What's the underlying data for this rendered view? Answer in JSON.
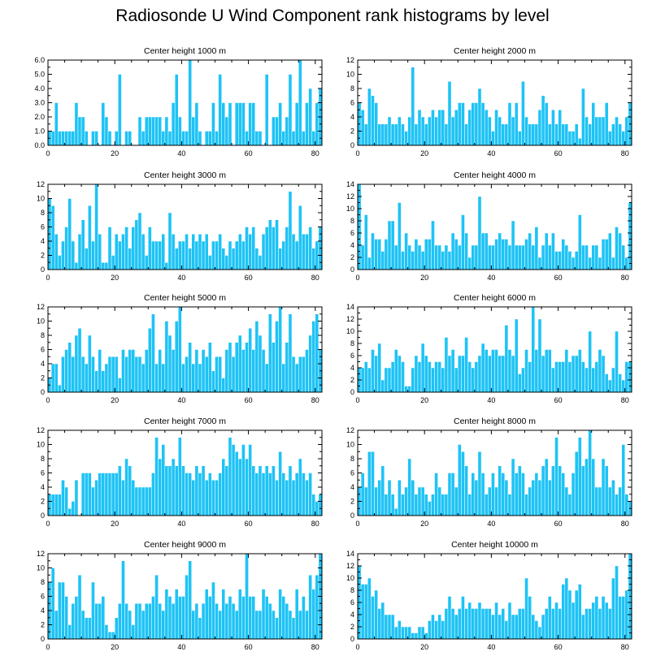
{
  "figure": {
    "title": "Radiosonde U Wind Component rank histograms by level",
    "bar_color": "#1ec3f5",
    "bar_edge_color": "#ffffff",
    "axis_color": "#000000"
  },
  "chart_data": [
    {
      "type": "bar",
      "title": "Center height 1000 m",
      "xlim": [
        0,
        82
      ],
      "xticks": [
        0,
        20,
        40,
        60,
        80
      ],
      "ylim": [
        0,
        6
      ],
      "yticks": [
        0,
        1,
        2,
        3,
        4,
        5,
        6
      ],
      "ytick_labels": [
        "0.0",
        "1.0",
        "2.0",
        "3.0",
        "4.0",
        "5.0",
        "6.0"
      ],
      "x_start": 0,
      "values": [
        1,
        1,
        3,
        1,
        1,
        1,
        1,
        1,
        3,
        2,
        2,
        1,
        0,
        1,
        1,
        0,
        3,
        2,
        1,
        0,
        1,
        5,
        0,
        1,
        1,
        0,
        0,
        2,
        1,
        2,
        2,
        2,
        2,
        2,
        1,
        2,
        1,
        3,
        5,
        2,
        1,
        1,
        6,
        2,
        3,
        1,
        0,
        1,
        1,
        3,
        1,
        5,
        3,
        2,
        3,
        0,
        3,
        3,
        3,
        1,
        3,
        3,
        1,
        1,
        0,
        5,
        0,
        2,
        2,
        3,
        1,
        2,
        5,
        1,
        3,
        6,
        1,
        3,
        4,
        1,
        3,
        4
      ]
    },
    {
      "type": "bar",
      "title": "Center height 2000 m",
      "xlim": [
        0,
        82
      ],
      "xticks": [
        0,
        20,
        40,
        60,
        80
      ],
      "ylim": [
        0,
        12
      ],
      "yticks": [
        0,
        2,
        4,
        6,
        8,
        10,
        12
      ],
      "ytick_labels": [
        "0",
        "2",
        "4",
        "6",
        "8",
        "10",
        "12"
      ],
      "x_start": 0,
      "values": [
        6,
        5,
        3,
        8,
        7,
        6,
        3,
        3,
        3,
        4,
        3,
        3,
        4,
        3,
        2,
        4,
        11,
        3,
        5,
        4,
        3,
        4,
        5,
        4,
        5,
        5,
        3,
        9,
        4,
        5,
        6,
        6,
        3,
        5,
        6,
        6,
        8,
        6,
        5,
        4,
        2,
        5,
        4,
        3,
        3,
        6,
        4,
        6,
        2,
        9,
        4,
        3,
        3,
        3,
        5,
        7,
        6,
        3,
        5,
        3,
        5,
        3,
        3,
        2,
        2,
        3,
        1,
        8,
        4,
        3,
        6,
        4,
        4,
        4,
        6,
        2,
        3,
        4,
        3,
        2,
        4,
        6
      ]
    },
    {
      "type": "bar",
      "title": "Center height 3000 m",
      "xlim": [
        0,
        82
      ],
      "xticks": [
        0,
        20,
        40,
        60,
        80
      ],
      "ylim": [
        0,
        12
      ],
      "yticks": [
        0,
        2,
        4,
        6,
        8,
        10,
        12
      ],
      "ytick_labels": [
        "0",
        "2",
        "4",
        "6",
        "8",
        "10",
        "12"
      ],
      "x_start": 0,
      "values": [
        10,
        9,
        5,
        2,
        4,
        6,
        10,
        4,
        1,
        5,
        7,
        3,
        9,
        4,
        12,
        5,
        1,
        1,
        6,
        2,
        5,
        4,
        5,
        6,
        3,
        6,
        7,
        8,
        5,
        2,
        6,
        4,
        4,
        4,
        5,
        1,
        8,
        5,
        3,
        4,
        4,
        5,
        3,
        5,
        4,
        5,
        4,
        5,
        2,
        4,
        4,
        5,
        3,
        2,
        4,
        3,
        4,
        5,
        4,
        6,
        5,
        6,
        3,
        2,
        5,
        6,
        7,
        6,
        7,
        3,
        4,
        6,
        11,
        5,
        4,
        9,
        5,
        5,
        6,
        3,
        4,
        6
      ]
    },
    {
      "type": "bar",
      "title": "Center height 4000 m",
      "xlim": [
        0,
        82
      ],
      "xticks": [
        0,
        20,
        40,
        60,
        80
      ],
      "ylim": [
        0,
        14
      ],
      "yticks": [
        0,
        2,
        4,
        6,
        8,
        10,
        12,
        14
      ],
      "ytick_labels": [
        "0",
        "2",
        "4",
        "6",
        "8",
        "10",
        "12",
        "14"
      ],
      "x_start": 0,
      "values": [
        14,
        4,
        9,
        2,
        6,
        5,
        5,
        3,
        5,
        8,
        8,
        4,
        11,
        3,
        6,
        4,
        3,
        5,
        4,
        3,
        5,
        5,
        8,
        4,
        4,
        3,
        4,
        3,
        6,
        5,
        4,
        9,
        6,
        2,
        4,
        4,
        12,
        6,
        6,
        4,
        4,
        5,
        6,
        5,
        5,
        4,
        8,
        4,
        4,
        4,
        5,
        6,
        4,
        7,
        2,
        4,
        6,
        4,
        6,
        3,
        3,
        5,
        4,
        3,
        2,
        3,
        9,
        4,
        4,
        2,
        4,
        4,
        2,
        5,
        5,
        6,
        2,
        7,
        6,
        4,
        2,
        11
      ]
    },
    {
      "type": "bar",
      "title": "Center height 5000 m",
      "xlim": [
        0,
        82
      ],
      "xticks": [
        0,
        20,
        40,
        60,
        80
      ],
      "ylim": [
        0,
        12
      ],
      "yticks": [
        0,
        2,
        4,
        6,
        8,
        10,
        12
      ],
      "ytick_labels": [
        "0",
        "2",
        "4",
        "6",
        "8",
        "10",
        "12"
      ],
      "x_start": 0,
      "values": [
        2,
        4,
        4,
        1,
        5,
        6,
        7,
        5,
        8,
        9,
        5,
        4,
        8,
        5,
        3,
        6,
        3,
        4,
        5,
        5,
        5,
        2,
        6,
        5,
        6,
        6,
        5,
        5,
        4,
        6,
        9,
        11,
        4,
        6,
        4,
        10,
        8,
        6,
        10,
        12,
        4,
        5,
        7,
        4,
        6,
        4,
        6,
        5,
        7,
        3,
        5,
        5,
        2,
        6,
        7,
        5,
        7,
        8,
        6,
        7,
        9,
        6,
        10,
        8,
        6,
        4,
        11,
        7,
        10,
        12,
        4,
        7,
        11,
        5,
        4,
        5,
        5,
        6,
        8,
        10,
        11,
        6
      ]
    },
    {
      "type": "bar",
      "title": "Center height 6000 m",
      "xlim": [
        0,
        82
      ],
      "xticks": [
        0,
        20,
        40,
        60,
        80
      ],
      "ylim": [
        0,
        14
      ],
      "yticks": [
        0,
        2,
        4,
        6,
        8,
        10,
        12,
        14
      ],
      "ytick_labels": [
        "0",
        "2",
        "4",
        "6",
        "8",
        "10",
        "12",
        "14"
      ],
      "x_start": 0,
      "values": [
        4,
        4,
        5,
        4,
        7,
        6,
        8,
        2,
        4,
        4,
        5,
        7,
        6,
        5,
        1,
        1,
        4,
        6,
        5,
        8,
        6,
        5,
        4,
        5,
        5,
        4,
        9,
        6,
        7,
        4,
        6,
        6,
        9,
        5,
        4,
        5,
        6,
        8,
        7,
        6,
        7,
        7,
        6,
        6,
        11,
        7,
        6,
        12,
        3,
        4,
        7,
        5,
        14,
        7,
        12,
        6,
        7,
        7,
        4,
        5,
        5,
        5,
        7,
        5,
        6,
        6,
        7,
        5,
        4,
        10,
        4,
        5,
        7,
        6,
        3,
        2,
        4,
        10,
        3,
        2,
        5,
        5
      ]
    },
    {
      "type": "bar",
      "title": "Center height 7000 m",
      "xlim": [
        0,
        82
      ],
      "xticks": [
        0,
        20,
        40,
        60,
        80
      ],
      "ylim": [
        0,
        12
      ],
      "yticks": [
        0,
        2,
        4,
        6,
        8,
        10,
        12
      ],
      "ytick_labels": [
        "0",
        "2",
        "4",
        "6",
        "8",
        "10",
        "12"
      ],
      "x_start": 0,
      "values": [
        3,
        3,
        3,
        3,
        5,
        4,
        1,
        2,
        5,
        0,
        6,
        6,
        6,
        4,
        5,
        6,
        6,
        6,
        6,
        6,
        6,
        7,
        5,
        8,
        7,
        5,
        4,
        4,
        4,
        4,
        4,
        6,
        11,
        8,
        10,
        7,
        7,
        8,
        7,
        11,
        7,
        6,
        6,
        5,
        7,
        6,
        7,
        5,
        6,
        5,
        5,
        6,
        8,
        7,
        11,
        10,
        9,
        8,
        10,
        8,
        10,
        7,
        6,
        7,
        6,
        7,
        6,
        7,
        5,
        9,
        6,
        5,
        7,
        5,
        6,
        8,
        6,
        5,
        6,
        3,
        2,
        3
      ]
    },
    {
      "type": "bar",
      "title": "Center height 8000 m",
      "xlim": [
        0,
        82
      ],
      "xticks": [
        0,
        20,
        40,
        60,
        80
      ],
      "ylim": [
        0,
        12
      ],
      "yticks": [
        0,
        2,
        4,
        6,
        8,
        10,
        12
      ],
      "ytick_labels": [
        "0",
        "2",
        "4",
        "6",
        "8",
        "10",
        "12"
      ],
      "x_start": 0,
      "values": [
        4,
        6,
        4,
        9,
        9,
        4,
        5,
        7,
        3,
        5,
        3,
        1,
        5,
        3,
        4,
        8,
        5,
        3,
        4,
        4,
        3,
        2,
        3,
        6,
        4,
        3,
        3,
        6,
        6,
        4,
        10,
        9,
        7,
        3,
        6,
        5,
        9,
        6,
        3,
        4,
        6,
        4,
        7,
        6,
        5,
        3,
        8,
        6,
        7,
        6,
        3,
        4,
        5,
        6,
        5,
        7,
        8,
        5,
        7,
        11,
        7,
        6,
        4,
        3,
        6,
        9,
        11,
        7,
        8,
        12,
        8,
        4,
        4,
        8,
        7,
        4,
        5,
        3,
        4,
        10,
        3,
        2
      ]
    },
    {
      "type": "bar",
      "title": "Center height 9000 m",
      "xlim": [
        0,
        82
      ],
      "xticks": [
        0,
        20,
        40,
        60,
        80
      ],
      "ylim": [
        0,
        12
      ],
      "yticks": [
        0,
        2,
        4,
        6,
        8,
        10,
        12
      ],
      "ytick_labels": [
        "0",
        "2",
        "4",
        "6",
        "8",
        "10",
        "12"
      ],
      "x_start": 0,
      "values": [
        8,
        10,
        4,
        8,
        8,
        6,
        2,
        5,
        6,
        9,
        4,
        3,
        3,
        8,
        5,
        5,
        6,
        2,
        1,
        1,
        3,
        5,
        11,
        5,
        4,
        2,
        5,
        5,
        4,
        5,
        5,
        6,
        9,
        5,
        4,
        7,
        6,
        5,
        7,
        6,
        6,
        9,
        11,
        4,
        5,
        3,
        5,
        7,
        6,
        8,
        5,
        4,
        7,
        5,
        6,
        5,
        4,
        7,
        6,
        12,
        6,
        6,
        4,
        4,
        7,
        6,
        5,
        4,
        3,
        7,
        6,
        5,
        4,
        3,
        7,
        4,
        6,
        4,
        9,
        7,
        9,
        12
      ]
    },
    {
      "type": "bar",
      "title": "Center height 10000 m",
      "xlim": [
        0,
        82
      ],
      "xticks": [
        0,
        20,
        40,
        60,
        80
      ],
      "ylim": [
        0,
        14
      ],
      "yticks": [
        0,
        2,
        4,
        6,
        8,
        10,
        12,
        14
      ],
      "ytick_labels": [
        "0",
        "2",
        "4",
        "6",
        "8",
        "10",
        "12",
        "14"
      ],
      "x_start": 0,
      "values": [
        12,
        9,
        9,
        10,
        7,
        8,
        5,
        6,
        4,
        4,
        4,
        2,
        3,
        2,
        2,
        2,
        1,
        1,
        2,
        2,
        1,
        3,
        4,
        3,
        4,
        3,
        5,
        7,
        5,
        4,
        5,
        7,
        5,
        6,
        5,
        5,
        6,
        5,
        5,
        5,
        4,
        6,
        4,
        5,
        3,
        6,
        4,
        4,
        5,
        5,
        10,
        7,
        4,
        3,
        2,
        4,
        5,
        7,
        5,
        6,
        5,
        9,
        10,
        8,
        6,
        8,
        9,
        4,
        5,
        5,
        6,
        7,
        5,
        7,
        6,
        5,
        10,
        12,
        7,
        7,
        8,
        14
      ]
    }
  ]
}
